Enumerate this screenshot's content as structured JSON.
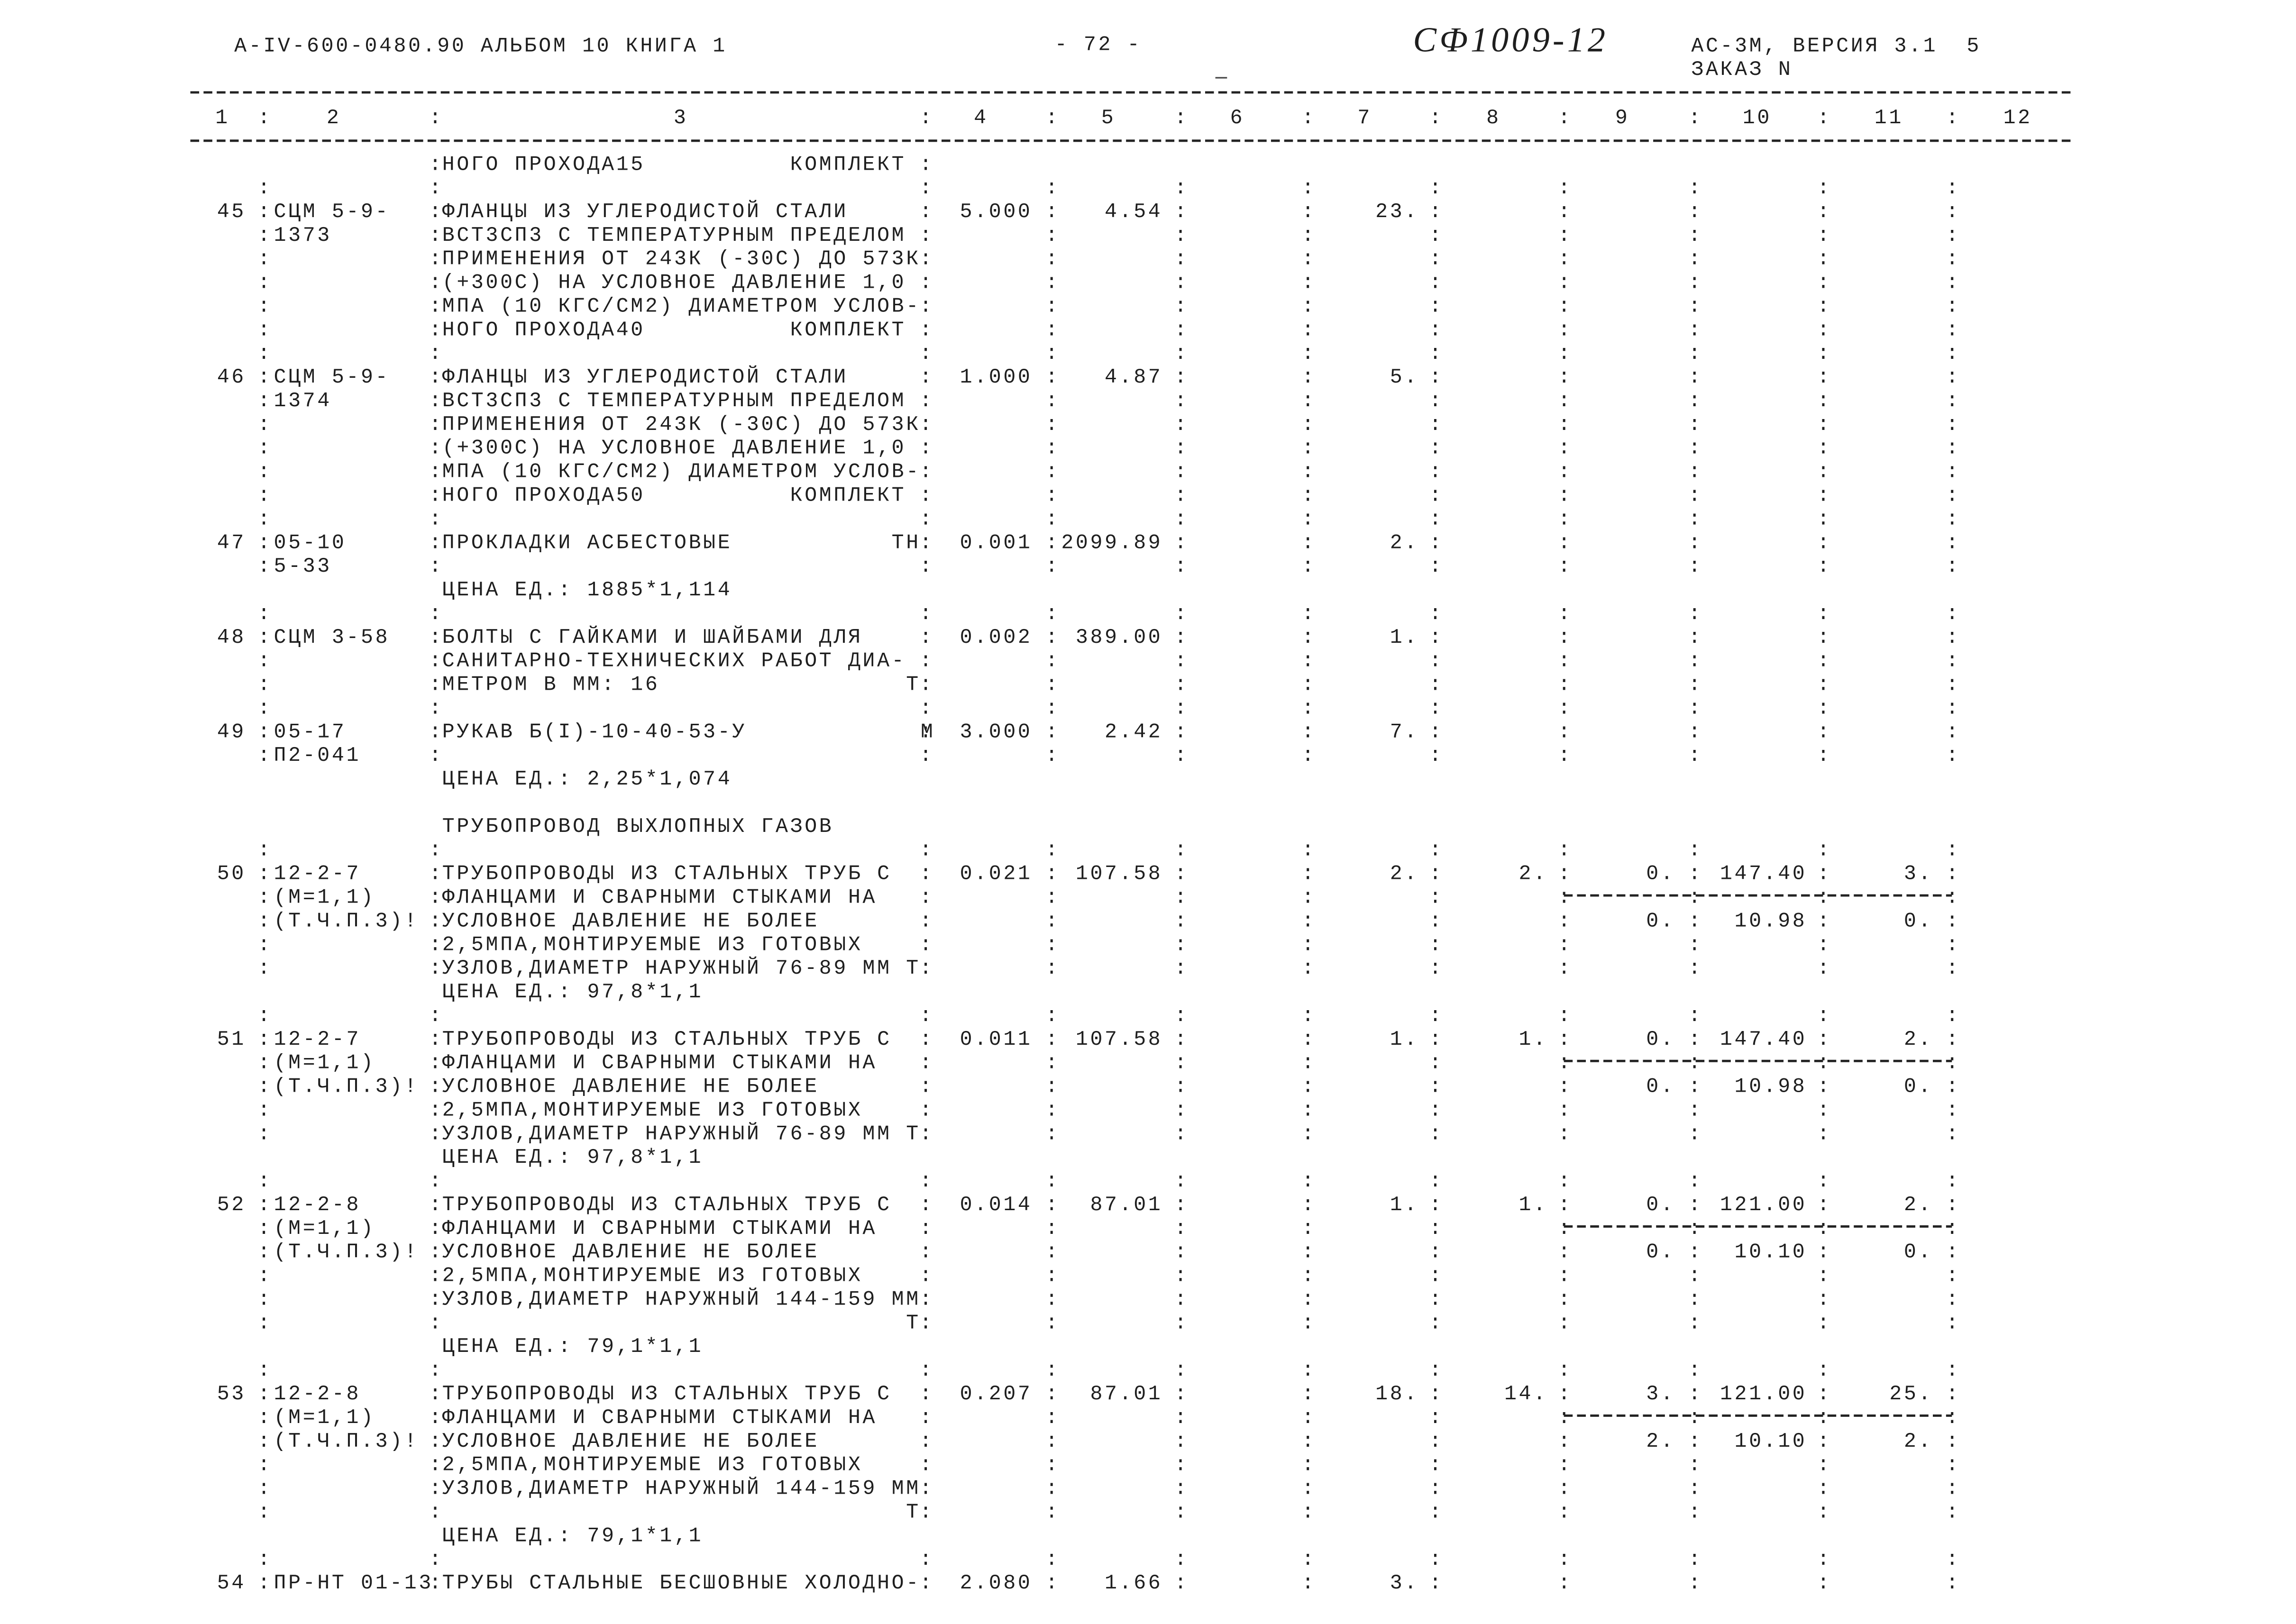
{
  "header": {
    "doc_id": "А-IV-600-0480.90 АЛЬБОМ 10 КНИГА 1",
    "page": "- 72 -",
    "handwritten": "СФ1009-12",
    "version": "АС-3М, ВЕРСИЯ 3.1  5",
    "order": "ЗАКАЗ N"
  },
  "separator": ":",
  "columns": [
    "1",
    "2",
    "3",
    "4",
    "5",
    "6",
    "7",
    "8",
    "9",
    "10",
    "11",
    "12"
  ],
  "rows": [
    {
      "desc": [
        "НОГО ПРОХОДА15          КОМПЛЕКТ"
      ]
    },
    {
      "num": "45",
      "code": [
        "СЦМ 5-9-",
        "1373"
      ],
      "desc": [
        "ФЛАНЦЫ ИЗ УГЛЕРОДИСТОЙ СТАЛИ",
        "ВСТ3СП3 С ТЕМПЕРАТУРНЫМ ПРЕДЕЛОМ",
        "ПРИМЕНЕНИЯ ОТ 243К (-30С) ДО 573К",
        "(+300С) НА УСЛОВНОЕ ДАВЛЕНИЕ 1,0",
        "МПА (10 КГС/СМ2) ДИАМЕТРОМ УСЛОВ-",
        "НОГО ПРОХОДА40          КОМПЛЕКТ"
      ],
      "c4": "5.000",
      "c5": "4.54",
      "c7": "23."
    },
    {
      "num": "46",
      "code": [
        "СЦМ 5-9-",
        "1374"
      ],
      "desc": [
        "ФЛАНЦЫ ИЗ УГЛЕРОДИСТОЙ СТАЛИ",
        "ВСТ3СП3 С ТЕМПЕРАТУРНЫМ ПРЕДЕЛОМ",
        "ПРИМЕНЕНИЯ ОТ 243К (-30С) ДО 573К",
        "(+300С) НА УСЛОВНОЕ ДАВЛЕНИЕ 1,0",
        "МПА (10 КГС/СМ2) ДИАМЕТРОМ УСЛОВ-",
        "НОГО ПРОХОДА50          КОМПЛЕКТ"
      ],
      "c4": "1.000",
      "c5": "4.87",
      "c7": "5."
    },
    {
      "num": "47",
      "code": [
        "05-10",
        "5-33"
      ],
      "desc": [
        "ПРОКЛАДКИ АСБЕСТОВЫЕ           ТН"
      ],
      "price": "ЦЕНА ЕД.: 1885*1,114",
      "c4": "0.001",
      "c5": "2099.89",
      "c7": "2."
    },
    {
      "num": "48",
      "code": [
        "СЦМ 3-58"
      ],
      "desc": [
        "БОЛТЫ С ГАЙКАМИ И ШАЙБАМИ ДЛЯ",
        "САНИТАРНО-ТЕХНИЧЕСКИХ РАБОТ ДИА-",
        "МЕТРОМ В ММ: 16                 Т"
      ],
      "c4": "0.002",
      "c5": "389.00",
      "c7": "1."
    },
    {
      "num": "49",
      "code": [
        "05-17",
        "П2-041"
      ],
      "desc": [
        "РУКАВ Б(I)-10-40-53-У            М"
      ],
      "price": "ЦЕНА ЕД.: 2,25*1,074",
      "c4": "3.000",
      "c5": "2.42",
      "c7": "7."
    },
    {
      "title": "ТРУБОПРОВОД ВЫХЛОПНЫХ ГАЗОВ"
    },
    {
      "num": "50",
      "code": [
        "12-2-7",
        "(М=1,1)",
        "(Т.Ч.П.3)!"
      ],
      "desc": [
        "ТРУБОПРОВОДЫ ИЗ СТАЛЬНЫХ ТРУБ С",
        "ФЛАНЦАМИ И СВАРНЫМИ СТЫКАМИ НА",
        "УСЛОВНОЕ ДАВЛЕНИЕ НЕ БОЛЕЕ",
        "2,5МПА,МОНТИРУЕМЫЕ ИЗ ГОТОВЫХ",
        "УЗЛОВ,ДИАМЕТР НАРУЖНЫЙ 76-89 ММ Т"
      ],
      "price": "ЦЕНА ЕД.: 97,8*1,1",
      "c4": "0.021",
      "c5": "107.58",
      "c7": "2.",
      "c8": "2.",
      "c9": "0.",
      "c10": "147.40",
      "c11": "3.",
      "sub": [
        "0.",
        "10.98",
        "0."
      ]
    },
    {
      "num": "51",
      "code": [
        "12-2-7",
        "(М=1,1)",
        "(Т.Ч.П.3)!"
      ],
      "desc": [
        "ТРУБОПРОВОДЫ ИЗ СТАЛЬНЫХ ТРУБ С",
        "ФЛАНЦАМИ И СВАРНЫМИ СТЫКАМИ НА",
        "УСЛОВНОЕ ДАВЛЕНИЕ НЕ БОЛЕЕ",
        "2,5МПА,МОНТИРУЕМЫЕ ИЗ ГОТОВЫХ",
        "УЗЛОВ,ДИАМЕТР НАРУЖНЫЙ 76-89 ММ Т"
      ],
      "price": "ЦЕНА ЕД.: 97,8*1,1",
      "c4": "0.011",
      "c5": "107.58",
      "c7": "1.",
      "c8": "1.",
      "c9": "0.",
      "c10": "147.40",
      "c11": "2.",
      "sub": [
        "0.",
        "10.98",
        "0."
      ]
    },
    {
      "num": "52",
      "code": [
        "12-2-8",
        "(М=1,1)",
        "(Т.Ч.П.3)!"
      ],
      "desc": [
        "ТРУБОПРОВОДЫ ИЗ СТАЛЬНЫХ ТРУБ С",
        "ФЛАНЦАМИ И СВАРНЫМИ СТЫКАМИ НА",
        "УСЛОВНОЕ ДАВЛЕНИЕ НЕ БОЛЕЕ",
        "2,5МПА,МОНТИРУЕМЫЕ ИЗ ГОТОВЫХ",
        "УЗЛОВ,ДИАМЕТР НАРУЖНЫЙ 144-159 ММ",
        "                                Т"
      ],
      "price": "ЦЕНА ЕД.: 79,1*1,1",
      "c4": "0.014",
      "c5": "87.01",
      "c7": "1.",
      "c8": "1.",
      "c9": "0.",
      "c10": "121.00",
      "c11": "2.",
      "sub": [
        "0.",
        "10.10",
        "0."
      ]
    },
    {
      "num": "53",
      "code": [
        "12-2-8",
        "(М=1,1)",
        "(Т.Ч.П.3)!"
      ],
      "desc": [
        "ТРУБОПРОВОДЫ ИЗ СТАЛЬНЫХ ТРУБ С",
        "ФЛАНЦАМИ И СВАРНЫМИ СТЫКАМИ НА",
        "УСЛОВНОЕ ДАВЛЕНИЕ НЕ БОЛЕЕ",
        "2,5МПА,МОНТИРУЕМЫЕ ИЗ ГОТОВЫХ",
        "УЗЛОВ,ДИАМЕТР НАРУЖНЫЙ 144-159 ММ",
        "                                Т"
      ],
      "price": "ЦЕНА ЕД.: 79,1*1,1",
      "c4": "0.207",
      "c5": "87.01",
      "c7": "18.",
      "c8": "14.",
      "c9": "3.",
      "c10": "121.00",
      "c11": "25.",
      "sub": [
        "2.",
        "10.10",
        "2."
      ]
    },
    {
      "num": "54",
      "code": [
        "ПР-НТ 01-13"
      ],
      "desc": [
        "ТРУБЫ СТАЛЬНЫЕ БЕСШОВНЫЕ ХОЛОДНО-"
      ],
      "c4": "2.080",
      "c5": "1.66",
      "c7": "3."
    }
  ]
}
